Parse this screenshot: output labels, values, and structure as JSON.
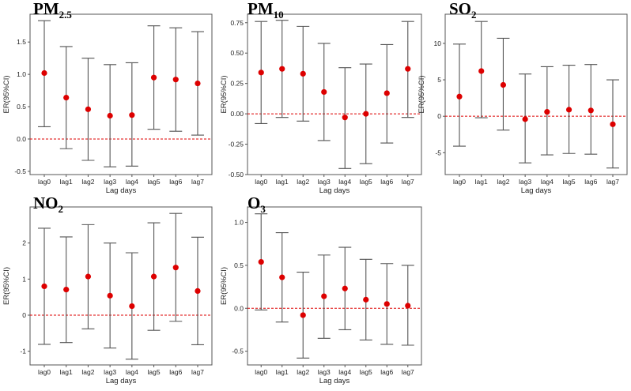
{
  "chart_data": [
    {
      "type": "errorbar",
      "title_main": "PM",
      "title_sub": "2.5",
      "xlabel": "Lag days",
      "ylabel": "ER(95%CI)",
      "categories": [
        "lag0",
        "lag1",
        "lag2",
        "lag3",
        "lag4",
        "lag5",
        "lag6",
        "lag7"
      ],
      "values": [
        1.02,
        0.64,
        0.46,
        0.36,
        0.37,
        0.95,
        0.92,
        0.86
      ],
      "lower": [
        0.19,
        -0.15,
        -0.33,
        -0.43,
        -0.42,
        0.15,
        0.12,
        0.06
      ],
      "upper": [
        1.83,
        1.43,
        1.25,
        1.15,
        1.18,
        1.75,
        1.72,
        1.66
      ],
      "yticks": [
        -0.5,
        0.0,
        0.5,
        1.0,
        1.5
      ],
      "ytick_labels": [
        "-0.5",
        "0.0",
        "0.5",
        "1.0",
        "1.5"
      ],
      "ylim": [
        -0.55,
        1.93
      ],
      "reference_line": 0
    },
    {
      "type": "errorbar",
      "title_main": "PM",
      "title_sub": "10",
      "xlabel": "Lag days",
      "ylabel": "ER(95%CI)",
      "categories": [
        "lag0",
        "lag1",
        "lag2",
        "lag3",
        "lag4",
        "lag5",
        "lag6",
        "lag7"
      ],
      "values": [
        0.34,
        0.37,
        0.33,
        0.18,
        -0.03,
        0.0,
        0.17,
        0.37
      ],
      "lower": [
        -0.08,
        -0.03,
        -0.06,
        -0.22,
        -0.45,
        -0.41,
        -0.24,
        -0.03
      ],
      "upper": [
        0.76,
        0.77,
        0.72,
        0.58,
        0.38,
        0.41,
        0.57,
        0.76
      ],
      "yticks": [
        -0.5,
        -0.25,
        0.0,
        0.25,
        0.5,
        0.75
      ],
      "ytick_labels": [
        "-0.50",
        "-0.25",
        "0.00",
        "0.25",
        "0.50",
        "0.75"
      ],
      "ylim": [
        -0.5,
        0.82
      ],
      "reference_line": 0
    },
    {
      "type": "errorbar",
      "title_main": "SO",
      "title_sub": "2",
      "xlabel": "Lag days",
      "ylabel": "ER(95%CI)",
      "categories": [
        "lag0",
        "lag1",
        "lag2",
        "lag3",
        "lag4",
        "lag5",
        "lag6",
        "lag7"
      ],
      "values": [
        2.7,
        6.2,
        4.3,
        -0.4,
        0.6,
        0.9,
        0.8,
        -1.1
      ],
      "lower": [
        -4.1,
        -0.2,
        -1.9,
        -6.4,
        -5.3,
        -5.1,
        -5.2,
        -7.1
      ],
      "upper": [
        9.9,
        13.0,
        10.7,
        5.8,
        6.8,
        7.0,
        7.1,
        5.0
      ],
      "yticks": [
        -5,
        0,
        5,
        10
      ],
      "ytick_labels": [
        "-5",
        "0",
        "5",
        "10"
      ],
      "ylim": [
        -8.0,
        14.0
      ],
      "reference_line": 0
    },
    {
      "type": "errorbar",
      "title_main": "NO",
      "title_sub": "2",
      "xlabel": "Lag days",
      "ylabel": "ER(95%CI)",
      "categories": [
        "lag0",
        "lag1",
        "lag2",
        "lag3",
        "lag4",
        "lag5",
        "lag6",
        "lag7"
      ],
      "values": [
        0.8,
        0.71,
        1.07,
        0.54,
        0.25,
        1.07,
        1.32,
        0.67
      ],
      "lower": [
        -0.81,
        -0.76,
        -0.38,
        -0.91,
        -1.22,
        -0.42,
        -0.17,
        -0.82
      ],
      "upper": [
        2.41,
        2.17,
        2.51,
        2.0,
        1.73,
        2.56,
        2.82,
        2.16
      ],
      "yticks": [
        -1,
        0,
        1,
        2
      ],
      "ytick_labels": [
        "-1",
        "0",
        "1",
        "2"
      ],
      "ylim": [
        -1.38,
        3.0
      ],
      "reference_line": 0
    },
    {
      "type": "errorbar",
      "title_main": "O",
      "title_sub": "3",
      "xlabel": "Lag days",
      "ylabel": "ER(95%CI)",
      "categories": [
        "lag0",
        "lag1",
        "lag2",
        "lag3",
        "lag4",
        "lag5",
        "lag6",
        "lag7"
      ],
      "values": [
        0.54,
        0.36,
        -0.08,
        0.14,
        0.23,
        0.1,
        0.05,
        0.03
      ],
      "lower": [
        -0.02,
        -0.16,
        -0.58,
        -0.35,
        -0.25,
        -0.37,
        -0.42,
        -0.43
      ],
      "upper": [
        1.1,
        0.88,
        0.42,
        0.62,
        0.71,
        0.57,
        0.52,
        0.5
      ],
      "yticks": [
        -0.5,
        0.0,
        0.5,
        1.0
      ],
      "ytick_labels": [
        "-0.5",
        "0.0",
        "0.5",
        "1.0"
      ],
      "ylim": [
        -0.66,
        1.18
      ],
      "reference_line": 0
    }
  ],
  "colors": {
    "point": "#dd0000",
    "reference_line": "#dd0000",
    "errorbar": "#555555",
    "frame": "#555555"
  }
}
